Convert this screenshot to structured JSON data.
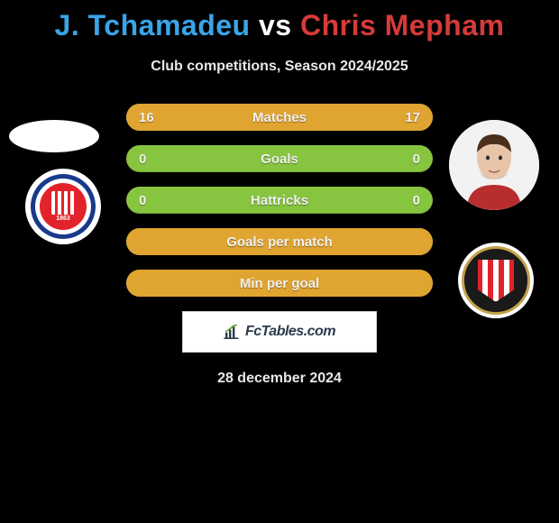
{
  "title_parts": {
    "player1": "J. Tchamadeu",
    "vs": " vs ",
    "player2": "Chris Mepham"
  },
  "title_colors": {
    "player1": "#3aa4e8",
    "vs": "#ffffff",
    "player2": "#d63a3a"
  },
  "subtitle": "Club competitions, Season 2024/2025",
  "date": "28 december 2024",
  "brand": "FcTables.com",
  "bar_colors": {
    "base": "#87c540",
    "fill": "#e0a431"
  },
  "rows": [
    {
      "label": "Matches",
      "left": "16",
      "right": "17",
      "left_pct": 48,
      "right_pct": 52
    },
    {
      "label": "Goals",
      "left": "0",
      "right": "0",
      "left_pct": 0,
      "right_pct": 0
    },
    {
      "label": "Hattricks",
      "left": "0",
      "right": "0",
      "left_pct": 0,
      "right_pct": 0
    },
    {
      "label": "Goals per match",
      "left": "",
      "right": "",
      "left_pct": 50,
      "right_pct": 50
    },
    {
      "label": "Min per goal",
      "left": "",
      "right": "",
      "left_pct": 50,
      "right_pct": 50
    }
  ]
}
